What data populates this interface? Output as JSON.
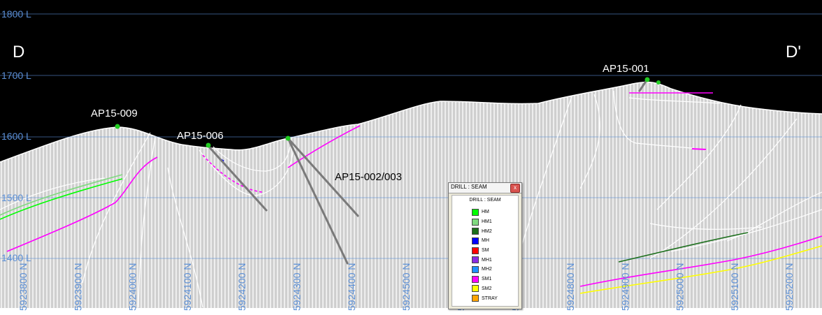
{
  "section": {
    "label_left": "D",
    "label_right": "D'"
  },
  "elevation_labels": [
    "1800 L",
    "1700 L",
    "1600 L",
    "1500 L",
    "1400 L"
  ],
  "northing_labels": [
    "5923800 N",
    "5923900 N",
    "5924000 N",
    "5924100 N",
    "5924200 N",
    "5924300 N",
    "5924400 N",
    "5924500 N",
    "5924600 N",
    "5924700 N",
    "5924800 N",
    "5924900 N",
    "5925000 N",
    "5925100 N",
    "5925200 N"
  ],
  "drillholes": [
    {
      "label": "AP15-009"
    },
    {
      "label": "AP15-006"
    },
    {
      "label": "AP15-002/003"
    },
    {
      "label": "AP15-001"
    }
  ],
  "legend": {
    "window_title": "DRILL : SEAM",
    "subtitle": "DRILL : SEAM",
    "close_glyph": "x",
    "items": [
      {
        "label": "HM",
        "color": "#00ff00"
      },
      {
        "label": "HM1",
        "color": "#7fd97f"
      },
      {
        "label": "HM2",
        "color": "#1a6e1a"
      },
      {
        "label": "MH",
        "color": "#0000ff"
      },
      {
        "label": "SM",
        "color": "#ff0000"
      },
      {
        "label": "MH1",
        "color": "#8a2be2"
      },
      {
        "label": "MH2",
        "color": "#1e90ff"
      },
      {
        "label": "SM1",
        "color": "#ff00ff"
      },
      {
        "label": "SM2",
        "color": "#ffff00"
      },
      {
        "label": "STRAY",
        "color": "#ffa500"
      }
    ]
  },
  "colors": {
    "sky": "#000000",
    "ground": "#d0d0d0",
    "grid_label": "#5b8fd6",
    "collar": "#22cc22",
    "drill_trace": "#7a7a7a"
  }
}
